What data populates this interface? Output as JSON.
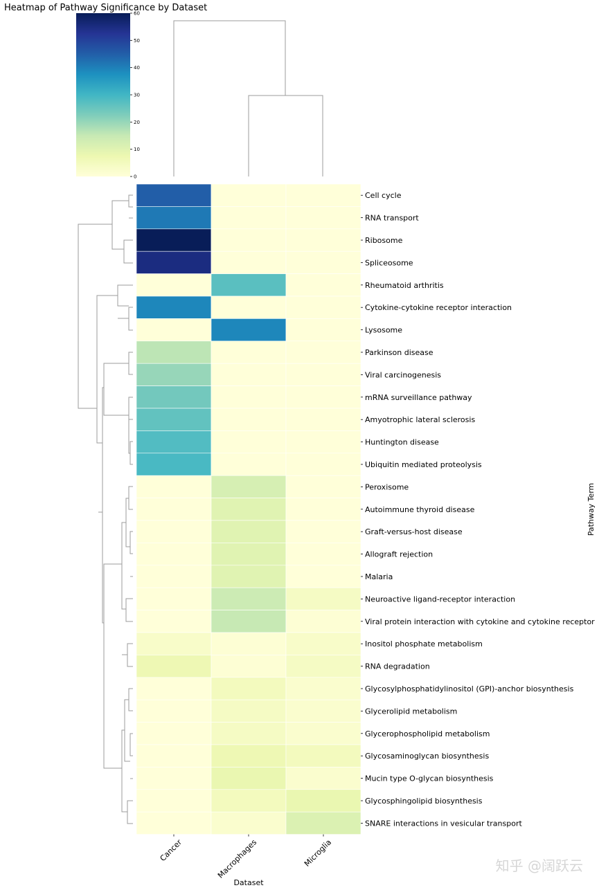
{
  "chart_data": {
    "type": "heatmap",
    "title": "Heatmap of Pathway Significance by Dataset",
    "xlabel": "Dataset",
    "ylabel": "Pathway Term",
    "columns": [
      "Cancer",
      "Macrophages",
      "Microglia"
    ],
    "rows": [
      "Cell cycle",
      "RNA transport",
      "Ribosome",
      "Spliceosome",
      "Rheumatoid arthritis",
      "Cytokine-cytokine receptor interaction",
      "Lysosome",
      "Parkinson disease",
      "Viral carcinogenesis",
      "mRNA surveillance pathway",
      "Amyotrophic lateral sclerosis",
      "Huntington disease",
      "Ubiquitin mediated proteolysis",
      "Peroxisome",
      "Autoimmune thyroid disease",
      "Graft-versus-host disease",
      "Allograft rejection",
      "Malaria",
      "Neuroactive ligand-receptor interaction",
      "Viral protein interaction with cytokine and cytokine receptor",
      "Inositol phosphate metabolism",
      "RNA degradation",
      "Glycosylphosphatidylinositol (GPI)-anchor biosynthesis",
      "Glycerolipid metabolism",
      "Glycerophospholipid metabolism",
      "Glycosaminoglycan biosynthesis",
      "Mucin type O-glycan biosynthesis",
      "Glycosphingolipid biosynthesis",
      "SNARE interactions in vesicular transport"
    ],
    "values": [
      [
        45,
        0,
        0
      ],
      [
        41,
        0,
        0
      ],
      [
        60,
        0,
        0
      ],
      [
        55,
        0,
        0
      ],
      [
        0,
        27,
        0
      ],
      [
        39,
        0,
        0
      ],
      [
        0,
        39,
        0
      ],
      [
        16,
        0,
        0
      ],
      [
        20,
        0,
        0
      ],
      [
        24,
        0,
        0
      ],
      [
        26,
        0,
        0
      ],
      [
        28,
        0,
        0
      ],
      [
        29,
        0,
        0
      ],
      [
        0,
        12,
        0
      ],
      [
        0,
        10,
        0
      ],
      [
        0,
        10,
        0
      ],
      [
        0,
        10,
        0
      ],
      [
        0,
        10,
        0
      ],
      [
        0,
        14,
        4
      ],
      [
        0,
        15,
        1
      ],
      [
        3,
        1,
        3
      ],
      [
        7,
        1,
        4
      ],
      [
        0,
        5,
        2
      ],
      [
        0,
        4,
        2
      ],
      [
        0,
        4,
        2
      ],
      [
        0,
        7,
        5
      ],
      [
        0,
        8,
        2
      ],
      [
        0,
        5,
        8
      ],
      [
        0,
        2,
        11
      ]
    ],
    "colorbar": {
      "colormap": "YlGnBu",
      "range": [
        0,
        60
      ],
      "ticks": [
        "0",
        "10",
        "20",
        "30",
        "40",
        "50",
        "60"
      ]
    },
    "dendrograms": {
      "columns": true,
      "rows": true
    }
  },
  "watermark": "知乎 @阔跃云"
}
